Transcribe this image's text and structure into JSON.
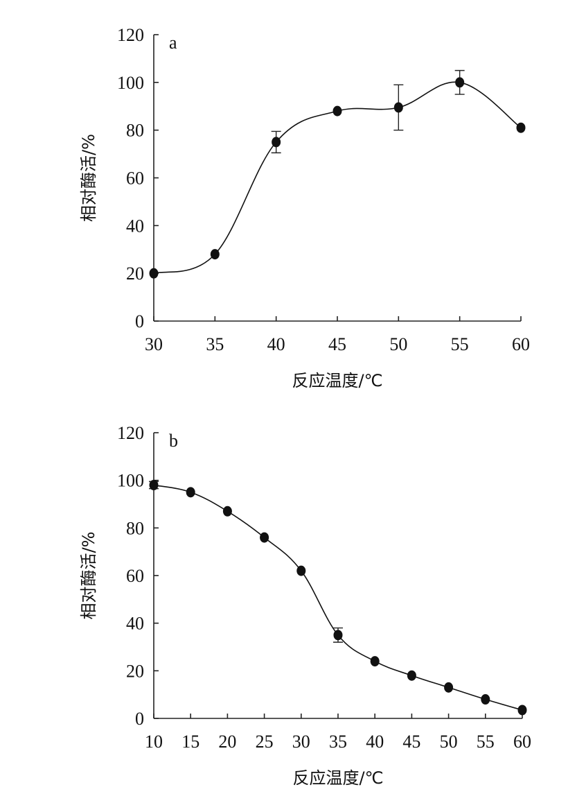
{
  "chart_data": [
    {
      "type": "line",
      "panel_label": "a",
      "xlabel": "反应温度/℃",
      "ylabel": "相对酶活/%",
      "xlim": [
        30,
        60
      ],
      "ylim": [
        0,
        120
      ],
      "xticks": [
        30,
        35,
        40,
        45,
        50,
        55,
        60
      ],
      "yticks": [
        0,
        20,
        40,
        60,
        80,
        100,
        120
      ],
      "grid": false,
      "series": [
        {
          "x": [
            30,
            35,
            40,
            45,
            50,
            55,
            60
          ],
          "y": [
            20,
            28,
            75,
            88,
            89.5,
            100,
            81
          ],
          "error": [
            0,
            0,
            4.5,
            0,
            9.5,
            5,
            0
          ]
        }
      ]
    },
    {
      "type": "line",
      "panel_label": "b",
      "xlabel": "反应温度/℃",
      "ylabel": "相对酶活/%",
      "xlim": [
        10,
        60
      ],
      "ylim": [
        0,
        120
      ],
      "xticks": [
        10,
        15,
        20,
        25,
        30,
        35,
        40,
        45,
        50,
        55,
        60
      ],
      "yticks": [
        0,
        20,
        40,
        60,
        80,
        100,
        120
      ],
      "grid": false,
      "series": [
        {
          "x": [
            10,
            15,
            20,
            25,
            30,
            35,
            40,
            45,
            50,
            55,
            60
          ],
          "y": [
            98,
            95,
            87,
            76,
            62,
            35,
            24,
            18,
            13,
            8,
            3.5
          ],
          "error": [
            1.5,
            0,
            0,
            0,
            0,
            3,
            0,
            0,
            0,
            0,
            0
          ]
        }
      ]
    }
  ]
}
